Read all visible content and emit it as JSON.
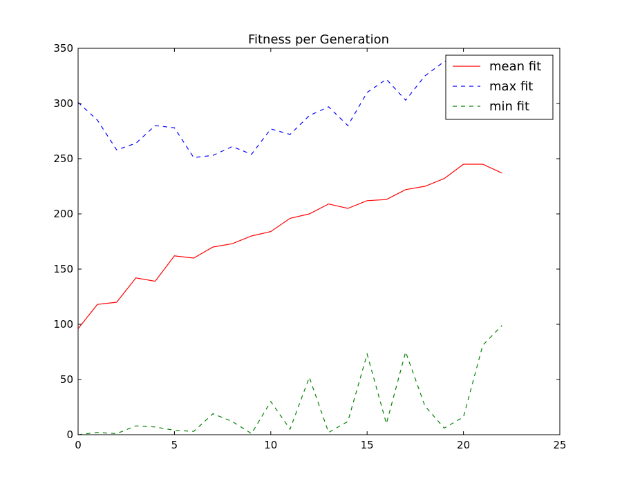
{
  "chart_data": {
    "type": "line",
    "title": "Fitness per Generation",
    "xlabel": "",
    "ylabel": "",
    "xlim": [
      0,
      25
    ],
    "ylim": [
      0,
      350
    ],
    "xticks": [
      0,
      5,
      10,
      15,
      20,
      25
    ],
    "yticks": [
      0,
      50,
      100,
      150,
      200,
      250,
      300,
      350
    ],
    "grid": false,
    "legend_position": "top-right",
    "x": [
      0,
      1,
      2,
      3,
      4,
      5,
      6,
      7,
      8,
      9,
      10,
      11,
      12,
      13,
      14,
      15,
      16,
      17,
      18,
      19,
      20,
      21,
      22
    ],
    "series": [
      {
        "name": "mean fit",
        "color": "#ff0000",
        "style": "solid",
        "values": [
          96,
          118,
          120,
          142,
          139,
          162,
          160,
          170,
          173,
          180,
          184,
          196,
          200,
          209,
          205,
          212,
          213,
          222,
          225,
          232,
          245,
          245,
          237
        ]
      },
      {
        "name": "max fit",
        "color": "#0000ff",
        "style": "dashed",
        "values": [
          301,
          285,
          258,
          264,
          280,
          278,
          251,
          253,
          261,
          254,
          277,
          272,
          289,
          297,
          280,
          310,
          322,
          303,
          325,
          338,
          339,
          338,
          336
        ]
      },
      {
        "name": "min fit",
        "color": "#008000",
        "style": "dashed",
        "values": [
          0,
          2,
          1,
          8,
          7,
          4,
          3,
          19,
          12,
          1,
          30,
          5,
          52,
          2,
          12,
          73,
          10,
          75,
          26,
          6,
          16,
          81,
          99
        ]
      }
    ]
  }
}
